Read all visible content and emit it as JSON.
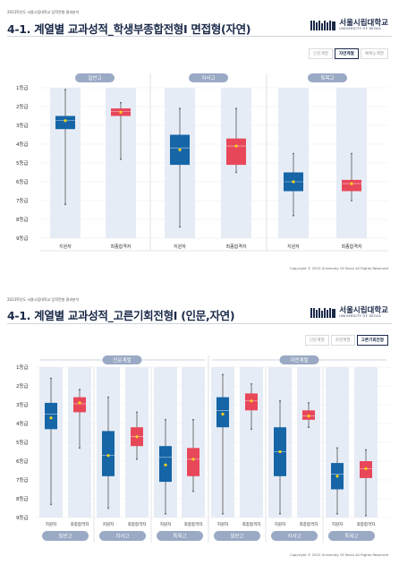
{
  "page1": {
    "caption": "2023학년도 서울시립대학교 입학전형 결과분석",
    "title": "4-1. 계열별 교과성적_학생부종합전형Ⅰ 면접형(자연)",
    "logo": {
      "ko": "서울시립대학교",
      "en": "UNIVERSITY OF SEOUL"
    },
    "tabs": [
      {
        "label": "인문계열",
        "active": false
      },
      {
        "label": "자연계열",
        "active": true
      },
      {
        "label": "예체능계열",
        "active": false
      }
    ],
    "copyright": "Copyright © 2023 University Of Seoul All Rights Reserved"
  },
  "page2": {
    "caption": "2023학년도 서울시립대학교 입학전형 결과분석",
    "title": "4-1. 계열별 교과성적_고른기회전형Ⅰ (인문,자연)",
    "logo": {
      "ko": "서울시립대학교",
      "en": "UNIVERSITY OF SEOUL"
    },
    "tabs": [
      {
        "label": "인문계열",
        "active": false
      },
      {
        "label": "자연계열",
        "active": false
      },
      {
        "label": "고른기회전형",
        "active": true
      }
    ],
    "copyright": "Copyright © 2023 University Of Seoul All Rights Reserved"
  },
  "colors": {
    "applicant": "#1565a7",
    "final": "#e8475a",
    "mean": "#f5d31a",
    "panel": "#e6ecf5",
    "header": "#9aa9c4"
  },
  "chart_data": [
    {
      "type": "box",
      "ylim": [
        1,
        9
      ],
      "y_ticks": [
        "1등급",
        "2등급",
        "3등급",
        "4등급",
        "5등급",
        "6등급",
        "7등급",
        "8등급",
        "9등급"
      ],
      "groups": [
        "일반고",
        "자사고",
        "특목고"
      ],
      "boxes": [
        {
          "group": "일반고",
          "label": "지원자",
          "series": "applicant",
          "min": 1.1,
          "q1": 2.5,
          "median": 2.75,
          "q3": 3.2,
          "max": 7.2,
          "mean": 2.75
        },
        {
          "group": "일반고",
          "label": "최종합격자",
          "series": "final",
          "min": 1.8,
          "q1": 2.1,
          "median": 2.25,
          "q3": 2.5,
          "max": 4.8,
          "mean": 2.3
        },
        {
          "group": "자사고",
          "label": "지원자",
          "series": "applicant",
          "min": 2.1,
          "q1": 3.5,
          "median": 4.2,
          "q3": 5.1,
          "max": 8.4,
          "mean": 4.3
        },
        {
          "group": "자사고",
          "label": "최종합격자",
          "series": "final",
          "min": 2.1,
          "q1": 3.7,
          "median": 4.1,
          "q3": 5.1,
          "max": 5.5,
          "mean": 4.1
        },
        {
          "group": "특목고",
          "label": "지원자",
          "series": "applicant",
          "min": 4.5,
          "q1": 5.5,
          "median": 6.0,
          "q3": 6.5,
          "max": 7.8,
          "mean": 6.0
        },
        {
          "group": "특목고",
          "label": "최종합격자",
          "series": "final",
          "min": 4.5,
          "q1": 5.9,
          "median": 6.1,
          "q3": 6.5,
          "max": 7.0,
          "mean": 6.1
        }
      ]
    },
    {
      "type": "box",
      "ylim": [
        1,
        9
      ],
      "y_ticks": [
        "1등급",
        "2등급",
        "3등급",
        "4등급",
        "5등급",
        "6등급",
        "7등급",
        "8등급",
        "9등급"
      ],
      "categories": [
        "인문계열",
        "자연계열"
      ],
      "groups": [
        "일반고",
        "자사고",
        "특목고"
      ],
      "boxes": [
        {
          "category": "인문계열",
          "group": "일반고",
          "label": "지원자",
          "series": "applicant",
          "min": 1.6,
          "q1": 2.9,
          "median": 3.5,
          "q3": 4.3,
          "max": 8.3,
          "mean": 3.7
        },
        {
          "category": "인문계열",
          "group": "일반고",
          "label": "최종합격자",
          "series": "final",
          "min": 2.2,
          "q1": 2.6,
          "median": 2.95,
          "q3": 3.4,
          "max": 5.3,
          "mean": 2.9
        },
        {
          "category": "인문계열",
          "group": "자사고",
          "label": "지원자",
          "series": "applicant",
          "min": 2.6,
          "q1": 4.4,
          "median": 5.7,
          "q3": 6.8,
          "max": 8.5,
          "mean": 5.7
        },
        {
          "category": "인문계열",
          "group": "자사고",
          "label": "최종합격자",
          "series": "final",
          "min": 3.4,
          "q1": 4.2,
          "median": 4.7,
          "q3": 5.2,
          "max": 5.9,
          "mean": 4.7
        },
        {
          "category": "인문계열",
          "group": "특목고",
          "label": "지원자",
          "series": "applicant",
          "min": 3.8,
          "q1": 5.2,
          "median": 5.8,
          "q3": 7.1,
          "max": 8.8,
          "mean": 6.2
        },
        {
          "category": "인문계열",
          "group": "특목고",
          "label": "최종합격자",
          "series": "final",
          "min": 3.8,
          "q1": 5.3,
          "median": 5.9,
          "q3": 6.8,
          "max": 7.6,
          "mean": 5.9
        },
        {
          "category": "자연계열",
          "group": "일반고",
          "label": "지원자",
          "series": "applicant",
          "min": 1.4,
          "q1": 2.6,
          "median": 3.3,
          "q3": 4.2,
          "max": 8.8,
          "mean": 3.5
        },
        {
          "category": "자연계열",
          "group": "일반고",
          "label": "최종합격자",
          "series": "final",
          "min": 1.9,
          "q1": 2.4,
          "median": 2.8,
          "q3": 3.3,
          "max": 4.3,
          "mean": 2.8
        },
        {
          "category": "자연계열",
          "group": "자사고",
          "label": "지원자",
          "series": "applicant",
          "min": 2.8,
          "q1": 4.2,
          "median": 5.5,
          "q3": 6.8,
          "max": 8.8,
          "mean": 5.5
        },
        {
          "category": "자연계열",
          "group": "자사고",
          "label": "최종합격자",
          "series": "final",
          "min": 2.9,
          "q1": 3.3,
          "median": 3.6,
          "q3": 3.8,
          "max": 4.2,
          "mean": 3.6
        },
        {
          "category": "자연계열",
          "group": "특목고",
          "label": "지원자",
          "series": "applicant",
          "min": 5.3,
          "q1": 6.1,
          "median": 6.7,
          "q3": 7.5,
          "max": 8.8,
          "mean": 6.8
        },
        {
          "category": "자연계열",
          "group": "특목고",
          "label": "최종합격자",
          "series": "final",
          "min": 5.4,
          "q1": 6.0,
          "median": 6.4,
          "q3": 6.9,
          "max": 8.9,
          "mean": 6.4
        }
      ]
    }
  ]
}
